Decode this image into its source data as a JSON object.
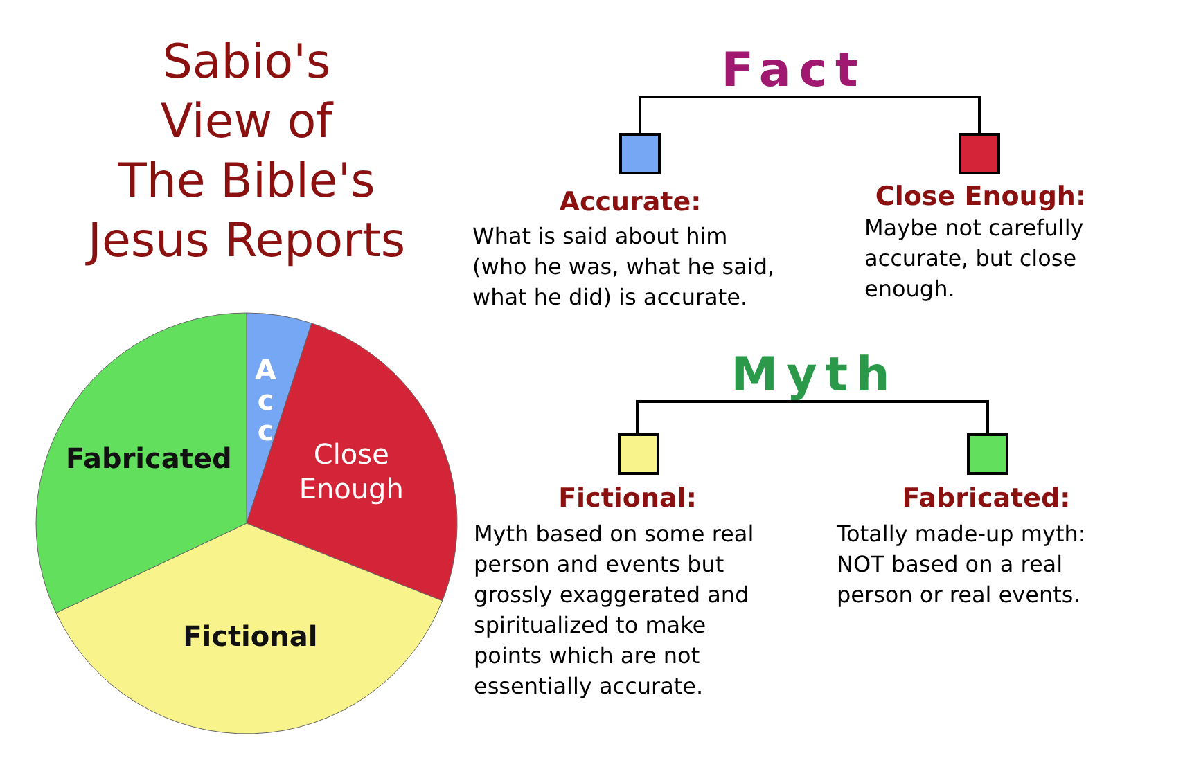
{
  "chart_data": {
    "type": "pie",
    "title": "Sabio's\nView of\nThe Bible's\nJesus Reports",
    "categories": [
      "Acc",
      "Close Enough",
      "Fictional",
      "Fabricated"
    ],
    "values": [
      5,
      26,
      37,
      32
    ],
    "colors": [
      "#75a7f5",
      "#d42438",
      "#f9f38b",
      "#62e05d"
    ],
    "annotations": [
      "Fact",
      "Myth",
      "Accurate:",
      "What is said about him\n(who he was, what he said,\nwhat he did) is accurate.",
      "Close Enough:",
      "Maybe not carefully\naccurate, but close\nenough.",
      "Fictional:",
      "Myth based on some real\nperson and events but\ngrossly exaggerated and\nspiritualized to make\npoints which are not\nessentially accurate.",
      "Fabricated:",
      "Totally made-up myth:\nNOT based on a real\nperson or real events."
    ]
  }
}
